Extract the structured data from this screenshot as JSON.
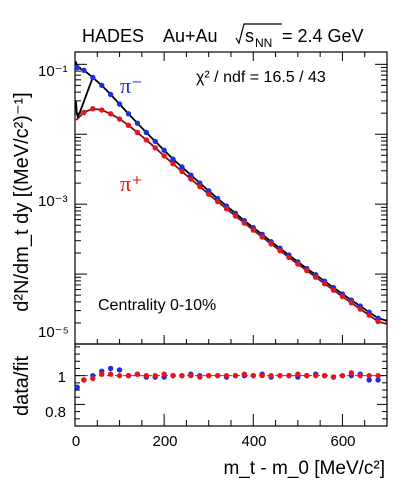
{
  "header": {
    "experiment": "HADES",
    "system": "Au+Au",
    "energy_symbol": "s",
    "energy_subscript": "NN",
    "energy_value": "= 2.4 GeV"
  },
  "annotations": {
    "chi2_text": "χ² / ndf = 16.5 / 43",
    "centrality": "Centrality 0-10%",
    "pi_minus_label": "π⁻",
    "pi_plus_label": "π⁺"
  },
  "colors": {
    "pi_minus": "#1a2fe0",
    "pi_plus": "#e8141c",
    "fit": "#000000",
    "fit_pi_plus": "#7a1010"
  },
  "chart_data": [
    {
      "type": "scatter",
      "panel": "spectrum",
      "ylabel": "d²N/dm_t dy [(MeV/c²)⁻¹]",
      "yscale": "log",
      "xlim": [
        0,
        700
      ],
      "ylim": [
        1e-05,
        0.15
      ],
      "y_tick_labels": [
        "10⁻¹",
        "10⁻³",
        "10⁻⁵"
      ],
      "series": [
        {
          "name": "π⁻",
          "x": [
            5,
            20,
            40,
            60,
            80,
            100,
            120,
            140,
            160,
            180,
            200,
            220,
            240,
            260,
            280,
            300,
            320,
            340,
            360,
            380,
            400,
            420,
            440,
            460,
            480,
            500,
            520,
            540,
            560,
            580,
            600,
            620,
            640,
            660,
            680
          ],
          "y": [
            0.09,
            0.082,
            0.065,
            0.05,
            0.037,
            0.027,
            0.0196,
            0.0144,
            0.0106,
            0.0079,
            0.0059,
            0.0044,
            0.0034,
            0.0026,
            0.002,
            0.00155,
            0.0012,
            0.00094,
            0.00074,
            0.00058,
            0.00046,
            0.00037,
            0.00029,
            0.000234,
            0.000187,
            0.00015,
            0.00012,
            9.8e-05,
            7.9e-05,
            6.4e-05,
            5.2e-05,
            4.25e-05,
            3.48e-05,
            2.85e-05,
            2.34e-05
          ]
        },
        {
          "name": "π⁺",
          "x": [
            20,
            40,
            60,
            80,
            100,
            120,
            140,
            160,
            180,
            200,
            220,
            240,
            260,
            280,
            300,
            320,
            340,
            360,
            380,
            400,
            420,
            440,
            460,
            480,
            500,
            520,
            540,
            560,
            580,
            600,
            620,
            640,
            660,
            680
          ],
          "y": [
            0.0205,
            0.0232,
            0.0222,
            0.0196,
            0.0165,
            0.0134,
            0.0106,
            0.0083,
            0.0064,
            0.0049,
            0.00378,
            0.00293,
            0.00228,
            0.00178,
            0.00139,
            0.00109,
            0.000858,
            0.000678,
            0.000537,
            0.000426,
            0.000339,
            0.00027,
            0.000216,
            0.000173,
            0.000139,
            0.000112,
            9.02e-05,
            7.28e-05,
            5.89e-05,
            4.78e-05,
            3.88e-05,
            3.16e-05,
            2.58e-05,
            2.1e-05
          ]
        }
      ]
    },
    {
      "type": "scatter",
      "panel": "ratio",
      "xlabel": "m_t - m_0 [MeV/c²]",
      "ylabel": "data/fit",
      "xlim": [
        0,
        700
      ],
      "ylim": [
        0.65,
        1.22
      ],
      "x_ticks": [
        0,
        200,
        400,
        600
      ],
      "x_tick_labels": [
        "0",
        "200",
        "400",
        "600"
      ],
      "y_ticks": [
        1.0,
        0.8
      ],
      "y_tick_labels": [
        "1",
        "0.8"
      ],
      "series": [
        {
          "name": "π⁻",
          "x": [
            5,
            20,
            40,
            60,
            80,
            100,
            120,
            140,
            160,
            180,
            200,
            220,
            240,
            260,
            280,
            300,
            320,
            340,
            360,
            380,
            400,
            420,
            440,
            460,
            480,
            500,
            520,
            540,
            560,
            580,
            600,
            620,
            640,
            660,
            680
          ],
          "y": [
            0.92,
            0.97,
            1.0,
            1.03,
            1.05,
            1.04,
            1.0,
            1.01,
            0.99,
            0.99,
            0.99,
            1.0,
            1.0,
            1.01,
            1.0,
            1.0,
            1.0,
            0.99,
            1.0,
            1.0,
            1.0,
            1.01,
            0.99,
            1.0,
            1.0,
            0.99,
            1.0,
            1.01,
            1.0,
            0.99,
            1.0,
            1.0,
            1.01,
            0.97,
            0.97
          ]
        },
        {
          "name": "π⁺",
          "x": [
            20,
            40,
            60,
            80,
            100,
            120,
            140,
            160,
            180,
            200,
            220,
            240,
            260,
            280,
            300,
            320,
            340,
            360,
            380,
            400,
            420,
            440,
            460,
            480,
            500,
            520,
            540,
            560,
            580,
            600,
            620,
            640,
            660,
            680
          ],
          "y": [
            0.97,
            0.98,
            1.01,
            1.01,
            1.0,
            1.0,
            1.01,
            1.0,
            1.0,
            1.01,
            1.0,
            1.0,
            1.0,
            0.99,
            1.0,
            1.0,
            1.0,
            1.0,
            1.01,
            1.0,
            1.0,
            1.0,
            1.0,
            1.0,
            1.01,
            1.0,
            1.0,
            1.0,
            0.99,
            1.0,
            1.02,
            1.0,
            1.0,
            1.0
          ]
        }
      ]
    }
  ]
}
